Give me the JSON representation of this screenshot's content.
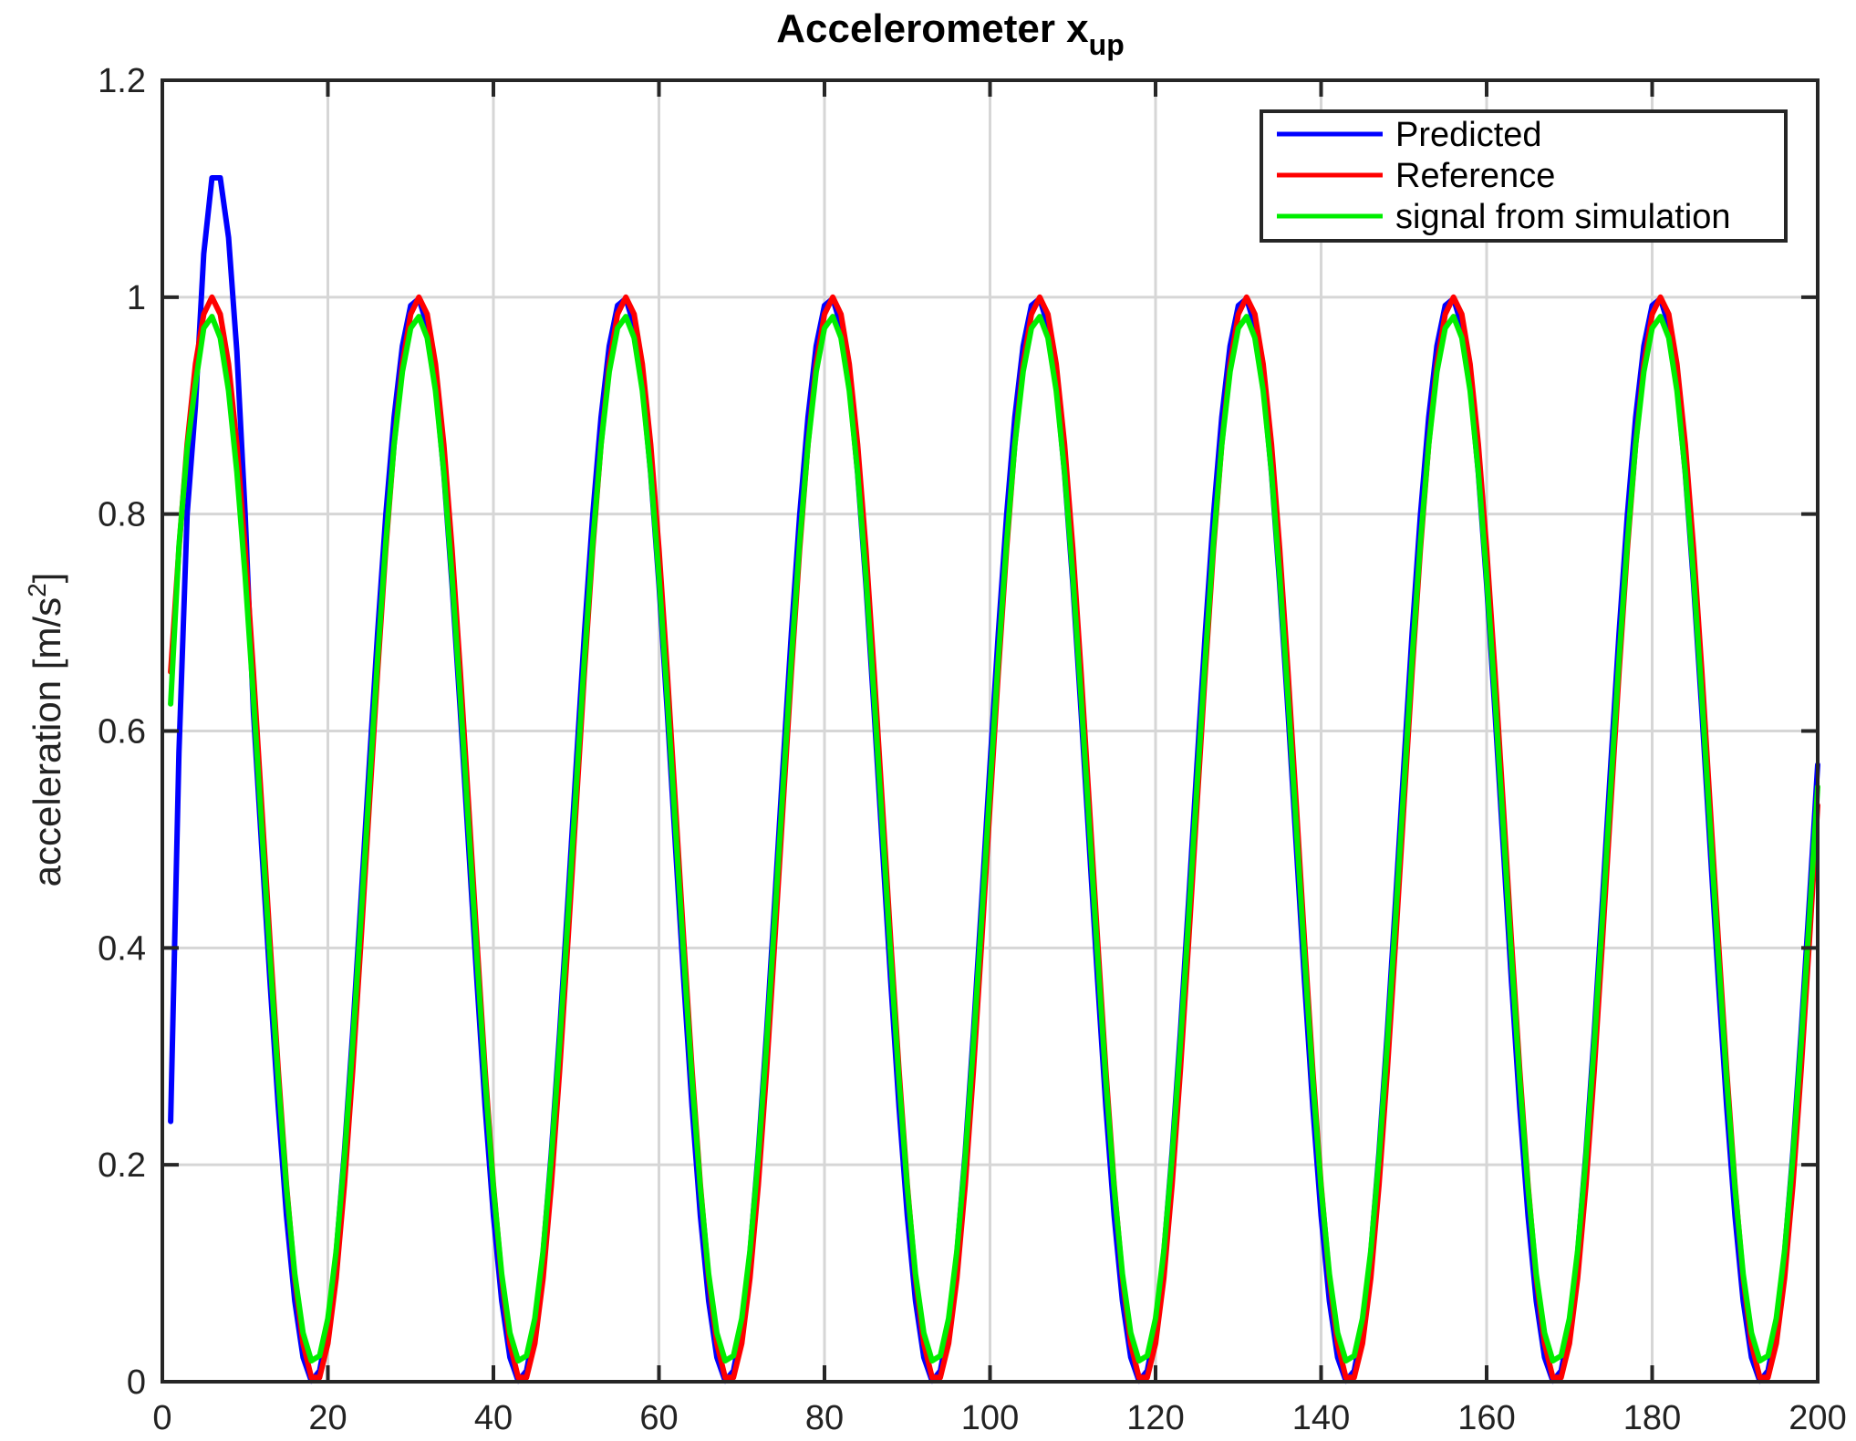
{
  "chart_data": {
    "type": "line",
    "title": "Accelerometer x",
    "title_subscript": "up",
    "xlabel": "",
    "ylabel": "acceleration [m/s",
    "ylabel_superscript": "2",
    "ylabel_suffix": "]",
    "xlim": [
      0,
      200
    ],
    "ylim": [
      0,
      1.2
    ],
    "xticks": [
      0,
      20,
      40,
      60,
      80,
      100,
      120,
      140,
      160,
      180,
      200
    ],
    "yticks": [
      0,
      0.2,
      0.4,
      0.6,
      0.8,
      1,
      1.2
    ],
    "xtick_labels": [
      "0",
      "20",
      "40",
      "60",
      "80",
      "100",
      "120",
      "140",
      "160",
      "180",
      "200"
    ],
    "ytick_labels": [
      "0",
      "0.2",
      "0.4",
      "0.6",
      "0.8",
      "1",
      "1.2"
    ],
    "grid": true,
    "legend_position": "top-right",
    "signal_model": {
      "x_start": 1,
      "x_end": 200,
      "step": 1,
      "period": 25,
      "peak_x": 6,
      "mean": 0.5,
      "amplitude": 0.5
    },
    "series": [
      {
        "name": "Predicted",
        "color": "#0000ff",
        "amplitude_scale": 1.0,
        "phase_shift": -0.3,
        "overrides": [
          [
            1,
            0.24
          ],
          [
            2,
            0.58
          ],
          [
            3,
            0.8
          ],
          [
            4,
            0.9
          ],
          [
            5,
            1.04
          ],
          [
            6,
            1.11
          ],
          [
            7,
            1.11
          ],
          [
            8,
            1.055
          ],
          [
            9,
            0.95
          ],
          [
            10,
            0.8
          ]
        ]
      },
      {
        "name": "Reference",
        "color": "#ff0000",
        "amplitude_scale": 1.0,
        "phase_shift": 0,
        "overrides": []
      },
      {
        "name": "signal from simulation",
        "color": "#00ee00",
        "amplitude_scale": 0.965,
        "phase_shift": -0.15,
        "overrides": [
          [
            1,
            0.625
          ],
          [
            2,
            0.77
          ],
          [
            3,
            0.86
          ],
          [
            4,
            0.92
          ]
        ]
      }
    ]
  }
}
